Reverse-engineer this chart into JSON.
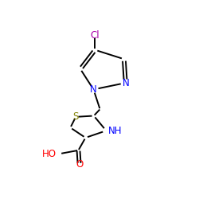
{
  "background_color": "#ffffff",
  "figsize": [
    2.5,
    2.5
  ],
  "dpi": 100,
  "atom_colors": {
    "Cl": "#aa00aa",
    "N": "#0000ff",
    "S": "#808000",
    "O": "#ff0000",
    "black": "#000000"
  }
}
